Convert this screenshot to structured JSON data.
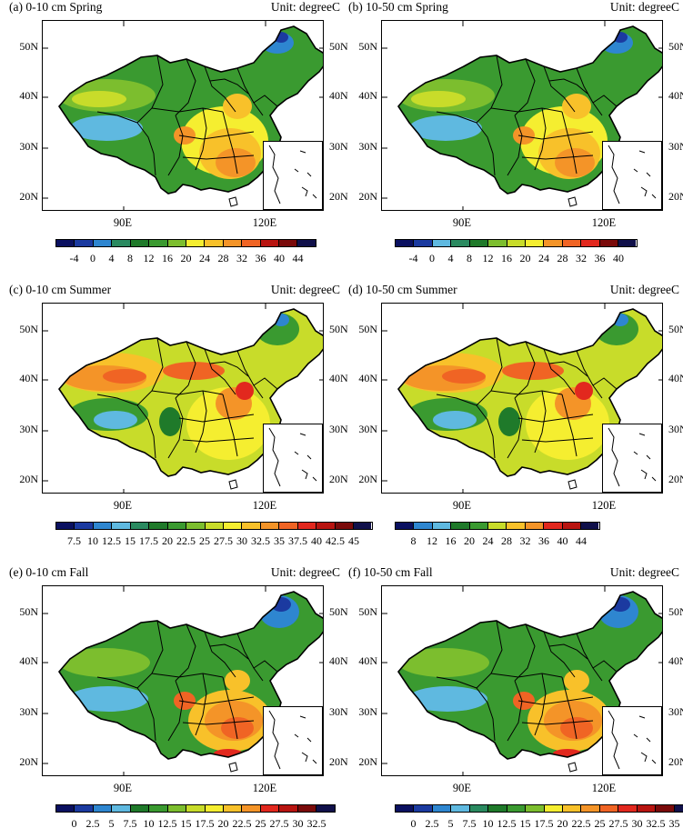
{
  "unit_label": "Unit: degreeC",
  "axes": {
    "lat_labels": [
      "50N",
      "40N",
      "30N",
      "20N"
    ],
    "lon_labels": [
      "90E",
      "120E"
    ]
  },
  "palette": [
    "#0a1060",
    "#1b3aa0",
    "#2e86d0",
    "#5fb9e0",
    "#2a8a60",
    "#1f7a2a",
    "#3a9a30",
    "#7cbe2e",
    "#c8dc2a",
    "#f5ee30",
    "#f8c12a",
    "#f49428",
    "#f06424",
    "#e2281e",
    "#b81410",
    "#7a0a0a",
    "#10104a"
  ],
  "panels": [
    {
      "id": "a",
      "title": "(a) 0-10 cm Spring",
      "season": "spring",
      "colorbar": [
        "-4",
        "0",
        "4",
        "8",
        "12",
        "16",
        "20",
        "24",
        "28",
        "32",
        "36",
        "40",
        "44"
      ]
    },
    {
      "id": "b",
      "title": "(b) 10-50 cm Spring",
      "season": "spring",
      "colorbar": [
        "-4",
        "0",
        "4",
        "8",
        "12",
        "16",
        "20",
        "24",
        "28",
        "32",
        "36",
        "40"
      ]
    },
    {
      "id": "c",
      "title": "(c) 0-10 cm Summer",
      "season": "summer",
      "colorbar": [
        "7.5",
        "10",
        "12.5",
        "15",
        "17.5",
        "20",
        "22.5",
        "25",
        "27.5",
        "30",
        "32.5",
        "35",
        "37.5",
        "40",
        "42.5",
        "45"
      ]
    },
    {
      "id": "d",
      "title": "(d) 10-50 cm Summer",
      "season": "summer",
      "colorbar": [
        "8",
        "12",
        "16",
        "20",
        "24",
        "28",
        "32",
        "36",
        "40",
        "44"
      ]
    },
    {
      "id": "e",
      "title": "(e) 0-10 cm Fall",
      "season": "fall",
      "colorbar": [
        "0",
        "2.5",
        "5",
        "7.5",
        "10",
        "12.5",
        "15",
        "17.5",
        "20",
        "22.5",
        "25",
        "27.5",
        "30",
        "32.5"
      ]
    },
    {
      "id": "f",
      "title": "(f) 10-50 cm Fall",
      "season": "fall",
      "colorbar": [
        "0",
        "2.5",
        "5",
        "7.5",
        "10",
        "12.5",
        "15",
        "17.5",
        "20",
        "22.5",
        "25",
        "27.5",
        "30",
        "32.5",
        "35"
      ]
    }
  ]
}
